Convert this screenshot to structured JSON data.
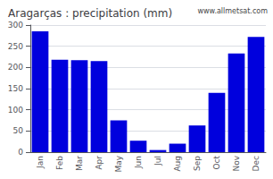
{
  "chart_data": {
    "type": "bar",
    "title": "Aragarças : precipitation (mm)",
    "categories": [
      "Jan",
      "Feb",
      "Mar",
      "Apr",
      "May",
      "Jun",
      "Jul",
      "Aug",
      "Sep",
      "Oct",
      "Nov",
      "Dec"
    ],
    "values": [
      285,
      218,
      217,
      215,
      75,
      27,
      5,
      20,
      63,
      140,
      233,
      272
    ],
    "color": "#0000dd",
    "ylim": [
      0,
      300
    ],
    "yticks": [
      0,
      50,
      100,
      150,
      200,
      250,
      300
    ],
    "grid": true,
    "annotations": [
      "www.allmetsat.com"
    ]
  }
}
